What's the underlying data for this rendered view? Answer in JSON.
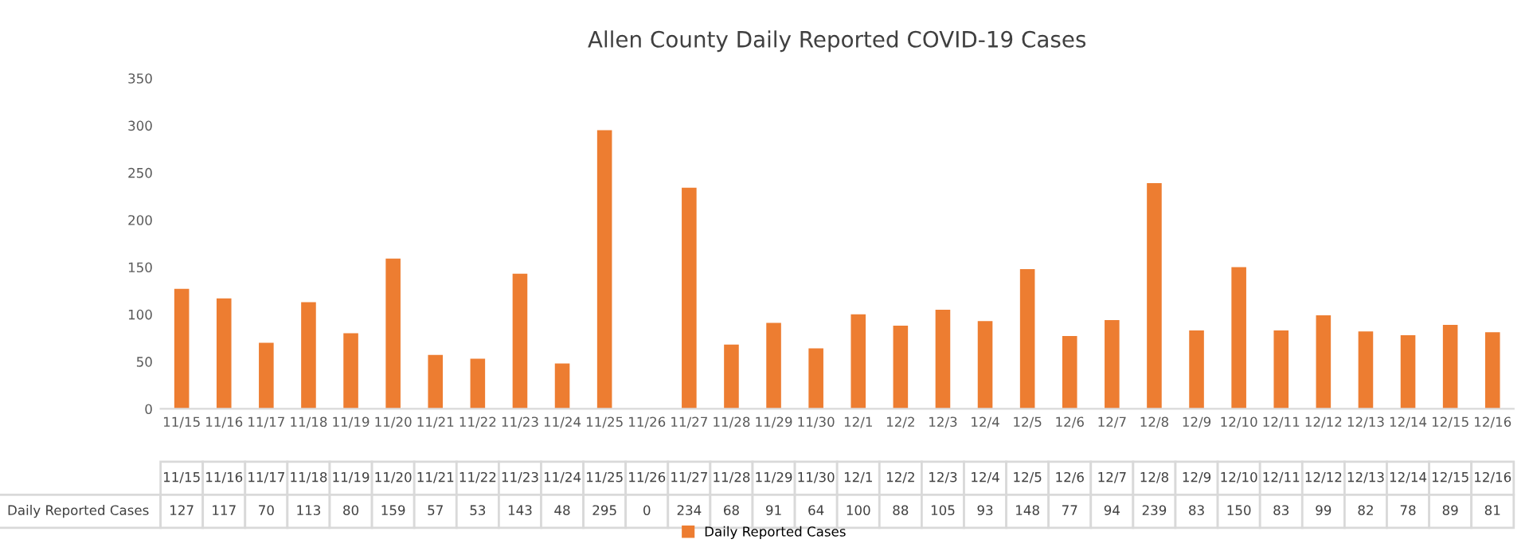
{
  "chart_data": {
    "type": "bar",
    "title": "Allen County Daily Reported COVID-19 Cases",
    "categories": [
      "11/15",
      "11/16",
      "11/17",
      "11/18",
      "11/19",
      "11/20",
      "11/21",
      "11/22",
      "11/23",
      "11/24",
      "11/25",
      "11/26",
      "11/27",
      "11/28",
      "11/29",
      "11/30",
      "12/1",
      "12/2",
      "12/3",
      "12/4",
      "12/5",
      "12/6",
      "12/7",
      "12/8",
      "12/9",
      "12/10",
      "12/11",
      "12/12",
      "12/13",
      "12/14",
      "12/15",
      "12/16"
    ],
    "series": [
      {
        "name": "Daily Reported Cases",
        "color": "#ed7d31",
        "values": [
          127,
          117,
          70,
          113,
          80,
          159,
          57,
          53,
          143,
          48,
          295,
          0,
          234,
          68,
          91,
          64,
          100,
          88,
          105,
          93,
          148,
          77,
          94,
          239,
          83,
          150,
          83,
          99,
          82,
          78,
          89,
          81
        ]
      }
    ],
    "ylim": [
      0,
      350
    ],
    "yticks": [
      0,
      50,
      100,
      150,
      200,
      250,
      300,
      350
    ],
    "grid": false,
    "legend": "bottom",
    "data_labels": true
  }
}
